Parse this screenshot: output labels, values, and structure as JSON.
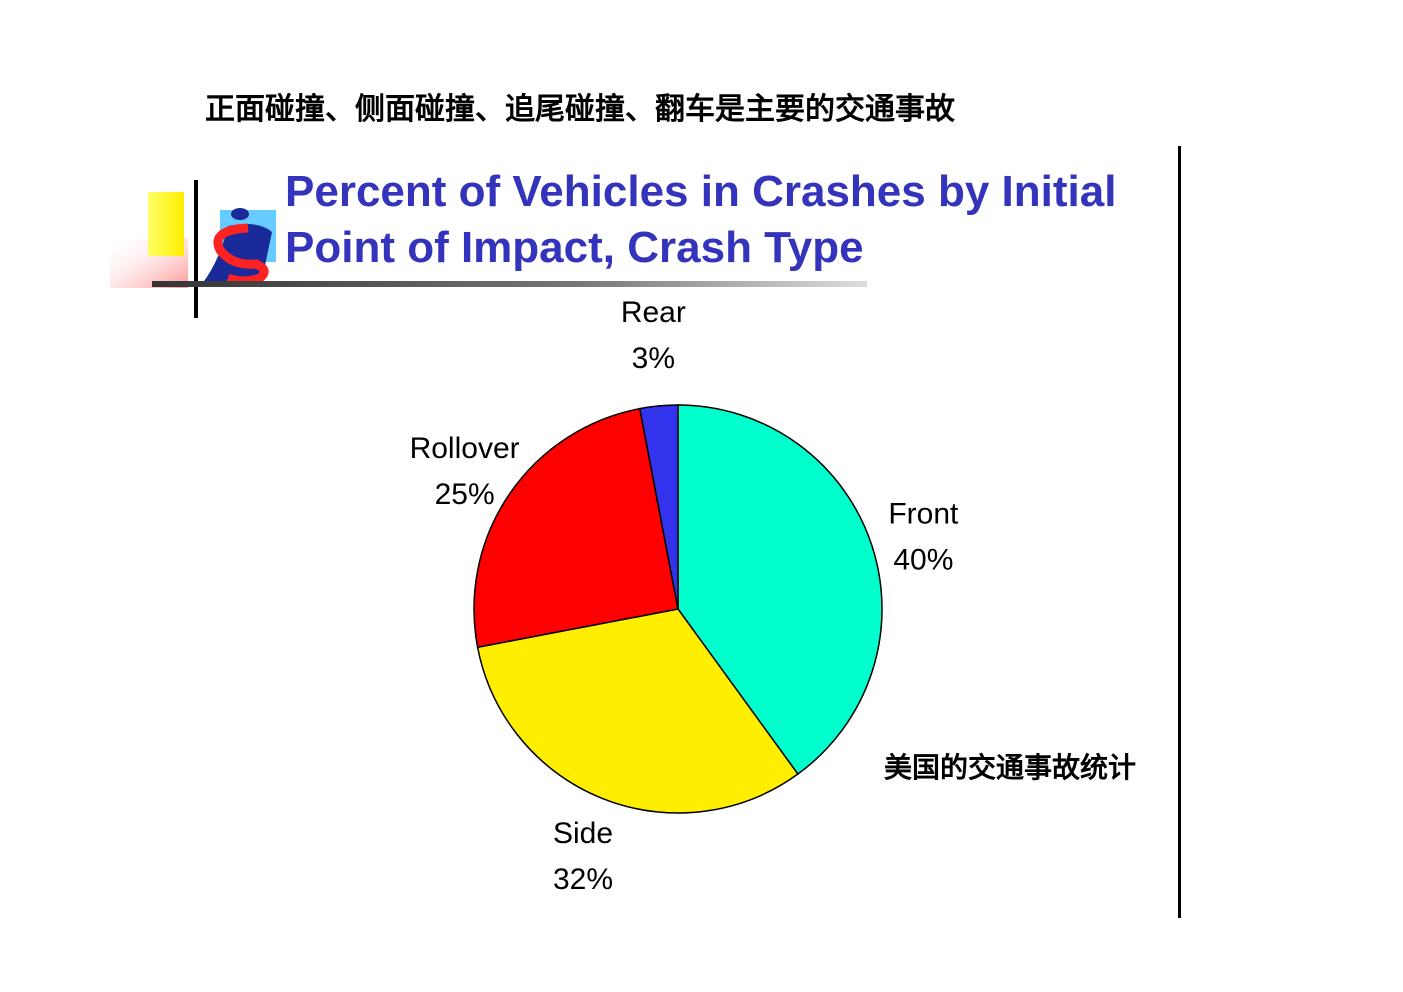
{
  "heading": "正面碰撞、侧面碰撞、追尾碰撞、翻车是主要的交通事故",
  "caption": "美国的交通事故统计",
  "chart_data": {
    "type": "pie",
    "title_lines": [
      "Percent of Vehicles in Crashes by Initial",
      "Point of Impact, Crash Type"
    ],
    "slices": [
      {
        "label": "Front",
        "value": 40,
        "value_label": "40%",
        "color": "#00ffcc"
      },
      {
        "label": "Side",
        "value": 32,
        "value_label": "32%",
        "color": "#ffee00"
      },
      {
        "label": "Rollover",
        "value": 25,
        "value_label": "25%",
        "color": "#ff0000"
      },
      {
        "label": "Rear",
        "value": 3,
        "value_label": "3%",
        "color": "#3333ee"
      }
    ],
    "start_angle_deg": 0,
    "direction": "clockwise",
    "title_color": "#3333bb"
  }
}
